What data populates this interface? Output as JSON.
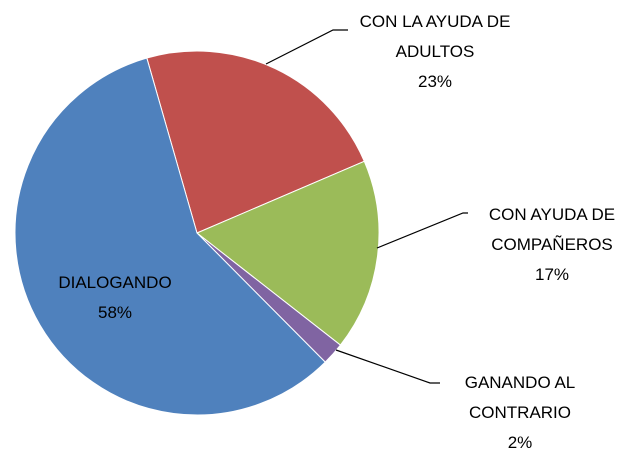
{
  "chart_data": {
    "type": "pie",
    "categories": [
      "CON LA AYUDA DE ADULTOS",
      "CON AYUDA DE COMPAÑEROS",
      "GANANDO AL CONTRARIO",
      "DIALOGANDO"
    ],
    "values": [
      23,
      17,
      2,
      58
    ],
    "value_labels": [
      "23%",
      "17%",
      "2%",
      "58%"
    ],
    "colors": [
      "#c0504d",
      "#9bbb59",
      "#8064a2",
      "#4f81bd"
    ]
  }
}
